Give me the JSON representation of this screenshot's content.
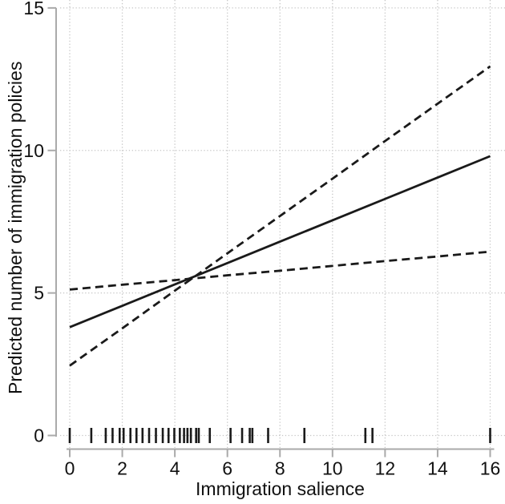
{
  "chart_data": {
    "type": "line",
    "title": "",
    "xlabel": "Immigration salience",
    "ylabel": "Predicted number of immigration policies",
    "xlim": [
      0,
      16
    ],
    "ylim": [
      0,
      15
    ],
    "xticks": [
      0,
      2,
      4,
      6,
      8,
      10,
      12,
      14,
      16
    ],
    "yticks": [
      0,
      5,
      10,
      15
    ],
    "grid": {
      "show": true,
      "style": "dotted",
      "color": "#c6c6c6",
      "vertical": true,
      "horizontal": true
    },
    "legend": {
      "show": false
    },
    "axis_color": "#aaaaaa",
    "text_color": "#111111",
    "line_color": "#1a1a1a",
    "background_color": "#ffffff",
    "x": [
      0,
      2,
      4,
      6,
      8,
      10,
      12,
      14,
      16
    ],
    "series": [
      {
        "name": "predicted",
        "line": "solid",
        "color": "#1a1a1a",
        "y": [
          3.8,
          4.55,
          5.3,
          6.05,
          6.8,
          7.55,
          8.3,
          9.05,
          9.8
        ]
      },
      {
        "name": "ci-bound-flat",
        "line": "dashed",
        "color": "#1a1a1a",
        "y": [
          5.12,
          5.29,
          5.45,
          5.62,
          5.78,
          5.95,
          6.12,
          6.28,
          6.45
        ]
      },
      {
        "name": "ci-bound-steep",
        "line": "dashed",
        "color": "#1a1a1a",
        "y": [
          2.45,
          3.76,
          5.08,
          6.39,
          7.7,
          9.01,
          10.33,
          11.64,
          12.95
        ]
      }
    ],
    "rug": {
      "axis": "x",
      "at_y": 0,
      "values": [
        0,
        0.82,
        1.37,
        1.63,
        1.9,
        2.05,
        2.31,
        2.54,
        2.77,
        3.02,
        3.28,
        3.54,
        3.76,
        3.98,
        4.19,
        4.35,
        4.48,
        4.61,
        4.81,
        4.91,
        5.33,
        6.12,
        6.56,
        6.85,
        6.95,
        7.55,
        8.93,
        11.25,
        11.52,
        16
      ]
    }
  }
}
